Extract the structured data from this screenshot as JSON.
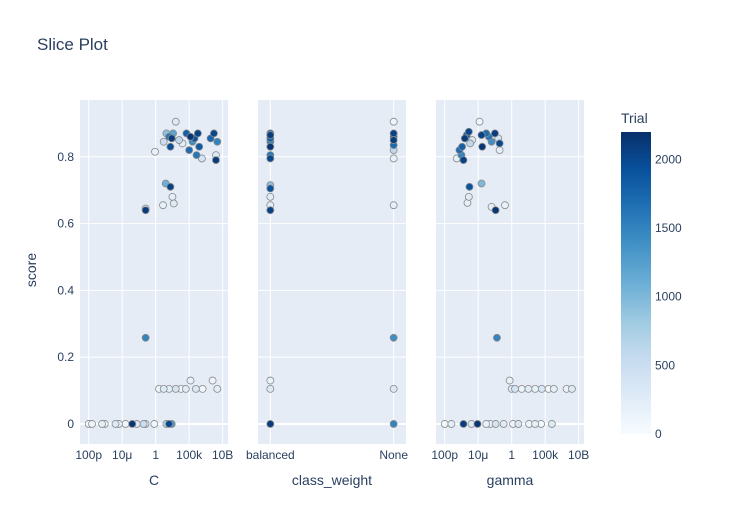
{
  "chart_data": {
    "type": "scatter",
    "title": "Slice Plot",
    "ylabel": "score",
    "ylim": [
      -0.06,
      0.97
    ],
    "y_ticks": [
      "0",
      "0.2",
      "0.4",
      "0.6",
      "0.8"
    ],
    "y_tick_values": [
      0,
      0.2,
      0.4,
      0.6,
      0.8
    ],
    "colorbar": {
      "title": "Trial",
      "range": [
        0,
        2200
      ],
      "ticks": [
        "0",
        "500",
        "1000",
        "1500",
        "2000"
      ],
      "tick_values": [
        0,
        500,
        1000,
        1500,
        2000
      ],
      "colorscale": [
        "#f7fbff",
        "#deebf7",
        "#c6dbef",
        "#9ecae1",
        "#6baed6",
        "#4292c6",
        "#2171b5",
        "#08519c",
        "#08306b"
      ]
    },
    "panels": [
      {
        "xlabel": "C",
        "scale": "log",
        "xlim_log10": [
          -11.3,
          10.8
        ],
        "x_ticks": [
          "100p",
          "10μ",
          "1",
          "100k",
          "10B"
        ],
        "x_tick_values_log10": [
          -10,
          -5,
          0,
          5,
          10
        ],
        "points": [
          {
            "x": -10.0,
            "y": 0.0,
            "trial": 40
          },
          {
            "x": -9.5,
            "y": 0.0,
            "trial": 120
          },
          {
            "x": -8.0,
            "y": 0.0,
            "trial": 200
          },
          {
            "x": -7.6,
            "y": 0.0,
            "trial": 60
          },
          {
            "x": -6.0,
            "y": 0.0,
            "trial": 300
          },
          {
            "x": -5.5,
            "y": 0.0,
            "trial": 150
          },
          {
            "x": -4.5,
            "y": 0.0,
            "trial": 90
          },
          {
            "x": -3.5,
            "y": 0.0,
            "trial": 2150
          },
          {
            "x": -2.8,
            "y": 0.0,
            "trial": 350
          },
          {
            "x": -1.8,
            "y": 0.0,
            "trial": 500
          },
          {
            "x": -1.5,
            "y": 0.0,
            "trial": 260
          },
          {
            "x": -0.2,
            "y": 0.0,
            "trial": 80
          },
          {
            "x": 1.6,
            "y": 0.0,
            "trial": 700
          },
          {
            "x": 2.0,
            "y": 0.0,
            "trial": 2000
          },
          {
            "x": 2.4,
            "y": 0.0,
            "trial": 1300
          },
          {
            "x": 0.5,
            "y": 0.105,
            "trial": 100
          },
          {
            "x": 1.2,
            "y": 0.105,
            "trial": 300
          },
          {
            "x": 2.0,
            "y": 0.105,
            "trial": 200
          },
          {
            "x": 3.0,
            "y": 0.105,
            "trial": 400
          },
          {
            "x": 3.8,
            "y": 0.105,
            "trial": 50
          },
          {
            "x": 4.5,
            "y": 0.105,
            "trial": 250
          },
          {
            "x": 5.2,
            "y": 0.13,
            "trial": 150
          },
          {
            "x": 6.0,
            "y": 0.105,
            "trial": 350
          },
          {
            "x": 7.0,
            "y": 0.105,
            "trial": 80
          },
          {
            "x": 8.5,
            "y": 0.13,
            "trial": 120
          },
          {
            "x": 9.2,
            "y": 0.105,
            "trial": 220
          },
          {
            "x": -1.5,
            "y": 0.258,
            "trial": 1500
          },
          {
            "x": -1.5,
            "y": 0.64,
            "trial": 2100
          },
          {
            "x": -1.5,
            "y": 0.645,
            "trial": 200
          },
          {
            "x": -0.1,
            "y": 0.815,
            "trial": 150
          },
          {
            "x": 1.1,
            "y": 0.655,
            "trial": 180
          },
          {
            "x": 1.5,
            "y": 0.72,
            "trial": 1100
          },
          {
            "x": 2.2,
            "y": 0.71,
            "trial": 2050
          },
          {
            "x": 2.5,
            "y": 0.68,
            "trial": 200
          },
          {
            "x": 2.7,
            "y": 0.66,
            "trial": 300
          },
          {
            "x": 1.2,
            "y": 0.845,
            "trial": 500
          },
          {
            "x": 1.6,
            "y": 0.87,
            "trial": 900
          },
          {
            "x": 2.0,
            "y": 0.86,
            "trial": 1600
          },
          {
            "x": 2.2,
            "y": 0.83,
            "trial": 1950
          },
          {
            "x": 2.4,
            "y": 0.855,
            "trial": 2100
          },
          {
            "x": 2.6,
            "y": 0.87,
            "trial": 1200
          },
          {
            "x": 3.0,
            "y": 0.905,
            "trial": 300
          },
          {
            "x": 3.5,
            "y": 0.85,
            "trial": 600
          },
          {
            "x": 4.0,
            "y": 0.84,
            "trial": 200
          },
          {
            "x": 4.6,
            "y": 0.87,
            "trial": 1800
          },
          {
            "x": 5.0,
            "y": 0.82,
            "trial": 1700
          },
          {
            "x": 5.2,
            "y": 0.86,
            "trial": 2150
          },
          {
            "x": 5.5,
            "y": 0.845,
            "trial": 1400
          },
          {
            "x": 5.8,
            "y": 0.855,
            "trial": 1900
          },
          {
            "x": 6.1,
            "y": 0.805,
            "trial": 1600
          },
          {
            "x": 6.3,
            "y": 0.87,
            "trial": 2050
          },
          {
            "x": 6.5,
            "y": 0.83,
            "trial": 1850
          },
          {
            "x": 6.9,
            "y": 0.795,
            "trial": 400
          },
          {
            "x": 8.2,
            "y": 0.855,
            "trial": 1750
          },
          {
            "x": 8.7,
            "y": 0.87,
            "trial": 2000
          },
          {
            "x": 9.0,
            "y": 0.79,
            "trial": 2100
          },
          {
            "x": 9.2,
            "y": 0.845,
            "trial": 1500
          },
          {
            "x": 9.0,
            "y": 0.805,
            "trial": 300
          }
        ]
      },
      {
        "xlabel": "class_weight",
        "scale": "category",
        "categories": [
          "balanced",
          "None"
        ],
        "x_ticks": [
          "balanced",
          "None"
        ],
        "points": [
          {
            "x": "balanced",
            "y": 0.0,
            "trial": 2100
          },
          {
            "x": "balanced",
            "y": 0.105,
            "trial": 300
          },
          {
            "x": "balanced",
            "y": 0.13,
            "trial": 150
          },
          {
            "x": "balanced",
            "y": 0.64,
            "trial": 2050
          },
          {
            "x": "balanced",
            "y": 0.655,
            "trial": 200
          },
          {
            "x": "balanced",
            "y": 0.68,
            "trial": 250
          },
          {
            "x": "balanced",
            "y": 0.705,
            "trial": 1900
          },
          {
            "x": "balanced",
            "y": 0.715,
            "trial": 900
          },
          {
            "x": "balanced",
            "y": 0.795,
            "trial": 2000
          },
          {
            "x": "balanced",
            "y": 0.805,
            "trial": 1600
          },
          {
            "x": "balanced",
            "y": 0.83,
            "trial": 2150
          },
          {
            "x": "balanced",
            "y": 0.845,
            "trial": 1500
          },
          {
            "x": "balanced",
            "y": 0.855,
            "trial": 1800
          },
          {
            "x": "balanced",
            "y": 0.865,
            "trial": 2100
          },
          {
            "x": "balanced",
            "y": 0.87,
            "trial": 1700
          },
          {
            "x": "None",
            "y": 0.0,
            "trial": 1500
          },
          {
            "x": "None",
            "y": 0.105,
            "trial": 300
          },
          {
            "x": "None",
            "y": 0.258,
            "trial": 1400
          },
          {
            "x": "None",
            "y": 0.655,
            "trial": 200
          },
          {
            "x": "None",
            "y": 0.795,
            "trial": 150
          },
          {
            "x": "None",
            "y": 0.82,
            "trial": 600
          },
          {
            "x": "None",
            "y": 0.835,
            "trial": 1700
          },
          {
            "x": "None",
            "y": 0.85,
            "trial": 2100
          },
          {
            "x": "None",
            "y": 0.86,
            "trial": 1900
          },
          {
            "x": "None",
            "y": 0.87,
            "trial": 2050
          },
          {
            "x": "None",
            "y": 0.905,
            "trial": 100
          }
        ]
      },
      {
        "xlabel": "gamma",
        "scale": "log",
        "xlim_log10": [
          -11.3,
          10.8
        ],
        "x_ticks": [
          "100p",
          "10μ",
          "1",
          "100k",
          "10B"
        ],
        "x_tick_values_log10": [
          -10,
          -5,
          0,
          5,
          10
        ],
        "points": [
          {
            "x": -10.0,
            "y": 0.0,
            "trial": 60
          },
          {
            "x": -9.0,
            "y": 0.0,
            "trial": 200
          },
          {
            "x": -7.2,
            "y": 0.0,
            "trial": 2100
          },
          {
            "x": -6.0,
            "y": 0.0,
            "trial": 300
          },
          {
            "x": -5.1,
            "y": 0.0,
            "trial": 2150
          },
          {
            "x": -3.8,
            "y": 0.0,
            "trial": 150
          },
          {
            "x": -3.2,
            "y": 0.0,
            "trial": 80
          },
          {
            "x": -2.4,
            "y": 0.0,
            "trial": 400
          },
          {
            "x": -1.2,
            "y": 0.0,
            "trial": 250
          },
          {
            "x": 0.2,
            "y": 0.0,
            "trial": 120
          },
          {
            "x": 1.0,
            "y": 0.0,
            "trial": 350
          },
          {
            "x": 2.6,
            "y": 0.0,
            "trial": 90
          },
          {
            "x": 3.5,
            "y": 0.0,
            "trial": 200
          },
          {
            "x": 4.4,
            "y": 0.0,
            "trial": 60
          },
          {
            "x": 6.0,
            "y": 0.0,
            "trial": 300
          },
          {
            "x": -0.3,
            "y": 0.13,
            "trial": 150
          },
          {
            "x": 0.0,
            "y": 0.105,
            "trial": 300
          },
          {
            "x": 0.5,
            "y": 0.105,
            "trial": 400
          },
          {
            "x": 1.5,
            "y": 0.105,
            "trial": 120
          },
          {
            "x": 2.5,
            "y": 0.105,
            "trial": 260
          },
          {
            "x": 3.5,
            "y": 0.105,
            "trial": 180
          },
          {
            "x": 4.5,
            "y": 0.105,
            "trial": 350
          },
          {
            "x": 5.5,
            "y": 0.105,
            "trial": 70
          },
          {
            "x": 6.3,
            "y": 0.105,
            "trial": 220
          },
          {
            "x": 8.2,
            "y": 0.105,
            "trial": 150
          },
          {
            "x": 9.0,
            "y": 0.105,
            "trial": 300
          },
          {
            "x": -2.2,
            "y": 0.258,
            "trial": 1500
          },
          {
            "x": -2.4,
            "y": 0.64,
            "trial": 2150
          },
          {
            "x": -6.6,
            "y": 0.662,
            "trial": 200
          },
          {
            "x": -6.4,
            "y": 0.68,
            "trial": 250
          },
          {
            "x": -6.3,
            "y": 0.71,
            "trial": 1900
          },
          {
            "x": -4.5,
            "y": 0.72,
            "trial": 1000
          },
          {
            "x": -3.0,
            "y": 0.65,
            "trial": 200
          },
          {
            "x": -1.0,
            "y": 0.655,
            "trial": 150
          },
          {
            "x": -8.2,
            "y": 0.795,
            "trial": 200
          },
          {
            "x": -7.8,
            "y": 0.82,
            "trial": 1700
          },
          {
            "x": -7.5,
            "y": 0.805,
            "trial": 1500
          },
          {
            "x": -7.2,
            "y": 0.79,
            "trial": 2050
          },
          {
            "x": -7.4,
            "y": 0.83,
            "trial": 1800
          },
          {
            "x": -7.0,
            "y": 0.855,
            "trial": 2100
          },
          {
            "x": -6.7,
            "y": 0.865,
            "trial": 1900
          },
          {
            "x": -6.4,
            "y": 0.875,
            "trial": 2000
          },
          {
            "x": -6.2,
            "y": 0.84,
            "trial": 600
          },
          {
            "x": -5.9,
            "y": 0.85,
            "trial": 300
          },
          {
            "x": -4.8,
            "y": 0.905,
            "trial": 100
          },
          {
            "x": -4.5,
            "y": 0.865,
            "trial": 2050
          },
          {
            "x": -4.4,
            "y": 0.83,
            "trial": 2150
          },
          {
            "x": -3.8,
            "y": 0.87,
            "trial": 1700
          },
          {
            "x": -3.4,
            "y": 0.86,
            "trial": 1600
          },
          {
            "x": -3.0,
            "y": 0.845,
            "trial": 1400
          },
          {
            "x": -2.5,
            "y": 0.87,
            "trial": 2100
          },
          {
            "x": -2.0,
            "y": 0.855,
            "trial": 400
          },
          {
            "x": -1.8,
            "y": 0.84,
            "trial": 2000
          },
          {
            "x": -1.8,
            "y": 0.82,
            "trial": 200
          }
        ]
      }
    ]
  }
}
